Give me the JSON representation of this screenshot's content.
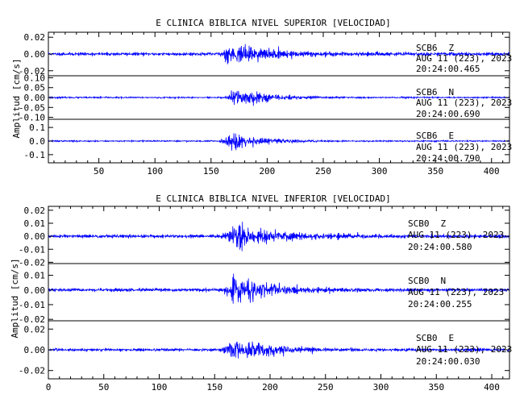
{
  "chart_data": [
    {
      "type": "line",
      "title": "E CLINICA BIBLICA NIVEL SUPERIOR [VELOCIDAD]",
      "ylabel": "Amplitud [cm/s]",
      "xlabel": "",
      "xlim": [
        5,
        416
      ],
      "xticks": [
        50,
        100,
        150,
        200,
        250,
        300,
        350,
        400
      ],
      "trace_color": "#0000ff",
      "traces": [
        {
          "station": "SCB6",
          "component": "Z",
          "date": "AUG 11 (223), 2023",
          "time": "20:24:00.465",
          "ylim": [
            -0.026,
            0.026
          ],
          "yticks": [
            0.02,
            0.0,
            -0.02
          ],
          "ytick_labels": [
            "0.02",
            "0.00",
            "-0.02"
          ],
          "noise": 0.0016,
          "onset": 153,
          "peak": 165,
          "peak_amp": 0.016,
          "decay": 42,
          "seed": 11
        },
        {
          "station": "SCB6",
          "component": "N",
          "date": "AUG 11 (223), 2023",
          "time": "20:24:00.690",
          "ylim": [
            -0.11,
            0.11
          ],
          "yticks": [
            0.1,
            0.05,
            0.0,
            -0.05,
            -0.1
          ],
          "ytick_labels": [
            "0.10",
            "0.05",
            "0.00",
            "-0.05",
            "-0.10"
          ],
          "noise": 0.003,
          "onset": 158,
          "peak": 172,
          "peak_amp": 0.072,
          "decay": 28,
          "seed": 23
        },
        {
          "station": "SCB6",
          "component": "E",
          "date": "AUG 11 (223), 2023",
          "time": "20:24:00.790",
          "ylim": [
            -0.16,
            0.16
          ],
          "yticks": [
            0.1,
            0.0,
            -0.1
          ],
          "ytick_labels": [
            "0.1",
            "0.0",
            "-0.1"
          ],
          "noise": 0.004,
          "onset": 152,
          "peak": 170,
          "peak_amp": 0.1,
          "decay": 24,
          "seed": 37
        }
      ]
    },
    {
      "type": "line",
      "title": "E CLINICA BIBLICA NIVEL INFERIOR [VELOCIDAD]",
      "ylabel": "Amplitud [cm/s]",
      "xlabel": "",
      "xlim": [
        0,
        416
      ],
      "xticks": [
        0,
        50,
        100,
        150,
        200,
        250,
        300,
        350,
        400
      ],
      "trace_color": "#0000ff",
      "traces": [
        {
          "station": "SCB0",
          "component": "Z",
          "date": "AUG 11 (223), 2023",
          "time": "20:24:00.580",
          "ylim": [
            -0.021,
            0.023
          ],
          "yticks": [
            0.02,
            0.01,
            0.0,
            -0.01,
            -0.02
          ],
          "ytick_labels": [
            "0.02",
            "0.01",
            "0.00",
            "-0.01",
            "-0.02"
          ],
          "noise": 0.0011,
          "onset": 153,
          "peak": 168,
          "peak_amp": 0.012,
          "decay": 40,
          "seed": 51
        },
        {
          "station": "SCB0",
          "component": "N",
          "date": "AUG 11 (223), 2023",
          "time": "20:24:00.255",
          "ylim": [
            -0.021,
            0.018
          ],
          "yticks": [
            0.01,
            0.0,
            -0.01,
            -0.02
          ],
          "ytick_labels": [
            "0.01",
            "0.00",
            "-0.01",
            "-0.02"
          ],
          "noise": 0.0009,
          "onset": 153,
          "peak": 168,
          "peak_amp": 0.013,
          "decay": 34,
          "seed": 67
        },
        {
          "station": "SCB0",
          "component": "E",
          "date": "AUG 11 (223), 2023",
          "time": "20:24:00.030",
          "ylim": [
            -0.028,
            0.028
          ],
          "yticks": [
            0.02,
            0.0,
            -0.02
          ],
          "ytick_labels": [
            "0.02",
            "0.00",
            "-0.02"
          ],
          "noise": 0.0011,
          "onset": 152,
          "peak": 167,
          "peak_amp": 0.02,
          "decay": 30,
          "seed": 83
        }
      ]
    }
  ]
}
